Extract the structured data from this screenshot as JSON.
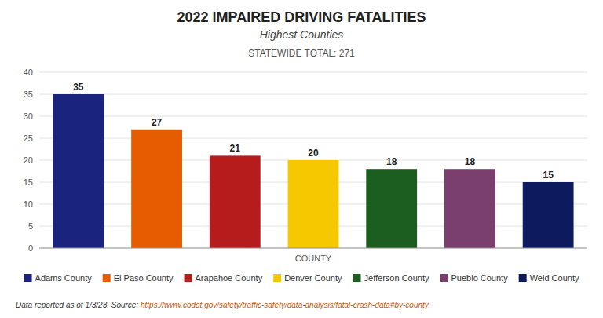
{
  "chart_data": {
    "type": "bar",
    "title": "2022 IMPAIRED DRIVING FATALITIES",
    "subtitle": "Highest Counties",
    "annotations": [
      "STATEWIDE TOTAL: 271",
      "Data reported as of 1/3/23. Source: ",
      "https://www.codot.gov/safety/traffic-safety/data-analysis/fatal-crash-data#by-county"
    ],
    "xlabel": "COUNTY",
    "categories": [
      "Adams County",
      "El Paso County",
      "Arapahoe County",
      "Denver County",
      "Jefferson County",
      "Pueblo County",
      "Weld County"
    ],
    "values": [
      35,
      27,
      21,
      20,
      18,
      18,
      15
    ],
    "colors": [
      "#1a237e",
      "#e65c00",
      "#b71c1c",
      "#f5c800",
      "#1b5e20",
      "#7b3f6e",
      "#0d1b5e"
    ],
    "ylim": [
      0,
      40
    ],
    "yticks": [
      0,
      5,
      10,
      15,
      20,
      25,
      30,
      35,
      40
    ],
    "grid": true,
    "data_labels": true,
    "legend": "bottom",
    "tick_labels": "y"
  }
}
